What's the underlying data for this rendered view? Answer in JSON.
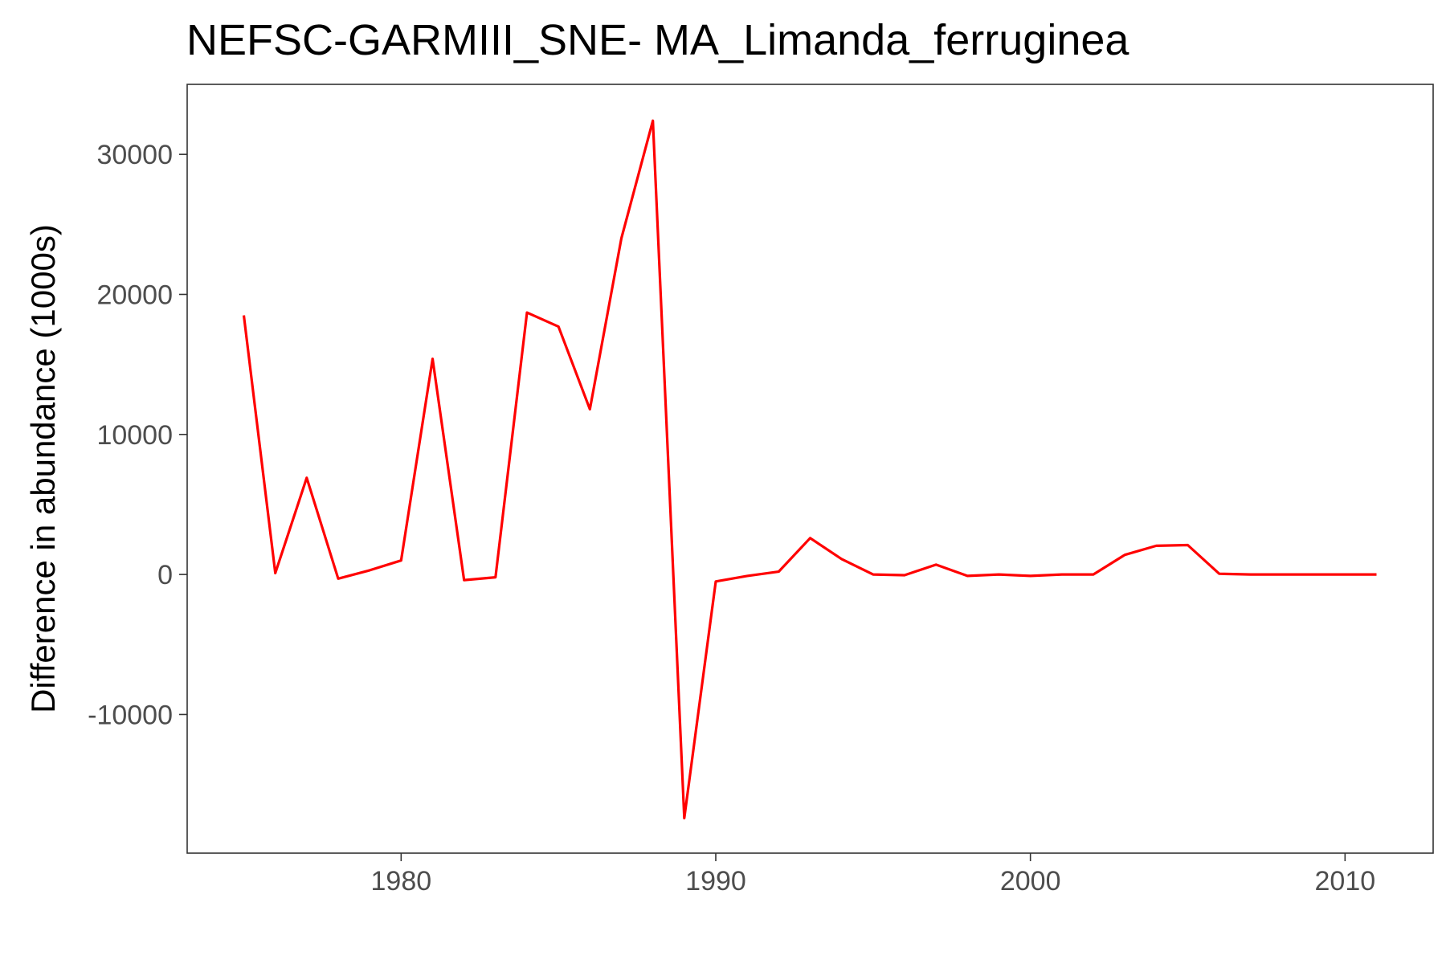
{
  "chart_data": {
    "type": "line",
    "title": "NEFSC-GARMIII_SNE- MA_Limanda_ferruginea",
    "xlabel": "",
    "ylabel": "Difference in abundance (1000s)",
    "xlim": [
      1973.2,
      2012.8
    ],
    "ylim": [
      -19900,
      35000
    ],
    "x_ticks": [
      1980,
      1990,
      2000,
      2010
    ],
    "x_tick_labels": [
      "1980",
      "1990",
      "2000",
      "2010"
    ],
    "y_ticks": [
      -10000,
      0,
      10000,
      20000,
      30000
    ],
    "y_tick_labels": [
      "-10000",
      "0",
      "10000",
      "20000",
      "30000"
    ],
    "grid": false,
    "legend": "none",
    "series": [
      {
        "color": "#ff0000",
        "x": [
          1975,
          1976,
          1977,
          1978,
          1979,
          1980,
          1981,
          1982,
          1983,
          1984,
          1985,
          1986,
          1987,
          1988,
          1989,
          1990,
          1991,
          1992,
          1993,
          1994,
          1995,
          1996,
          1997,
          1998,
          1999,
          2000,
          2001,
          2002,
          2003,
          2004,
          2005,
          2006,
          2007,
          2008,
          2009,
          2010,
          2011
        ],
        "y": [
          18500,
          100,
          6900,
          -300,
          300,
          1000,
          15400,
          -400,
          -200,
          18700,
          17700,
          11800,
          24000,
          32400,
          -17400,
          -500,
          -100,
          200,
          2600,
          1100,
          0,
          -50,
          700,
          -100,
          0,
          -100,
          0,
          0,
          1400,
          2050,
          2100,
          50,
          0,
          0,
          0,
          0,
          0
        ]
      }
    ]
  }
}
